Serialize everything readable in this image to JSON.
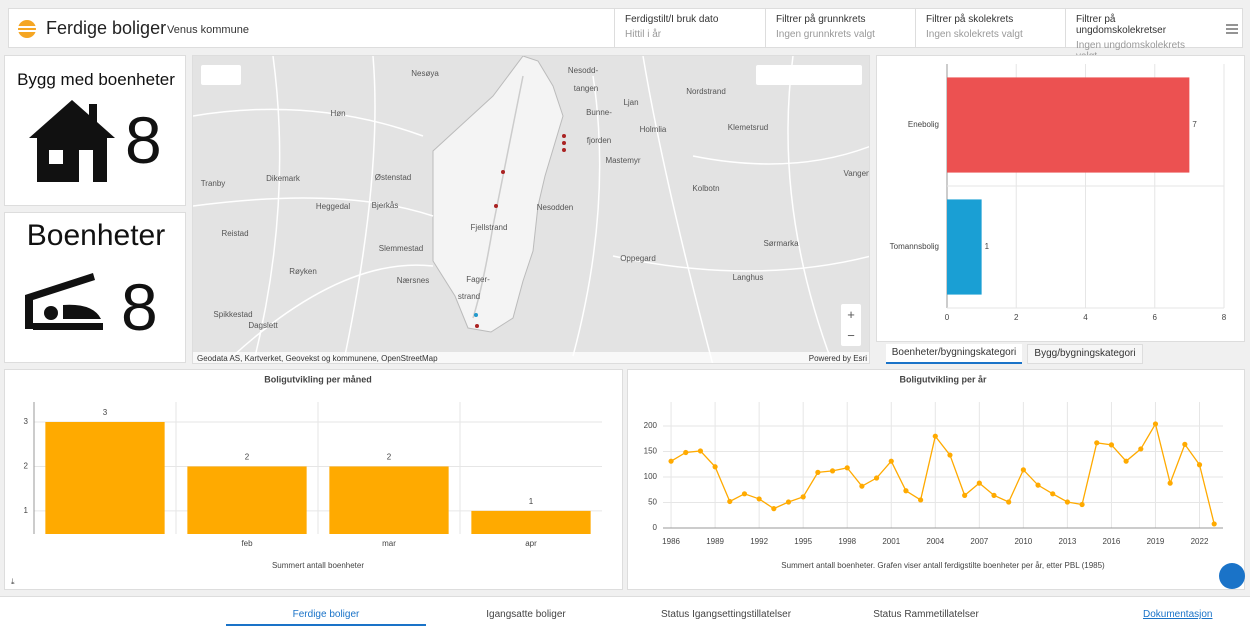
{
  "header": {
    "title": "Ferdige boliger",
    "subtitle": "Venus kommune"
  },
  "filters": [
    {
      "label": "Ferdigstilt/I bruk dato",
      "value": "Hittil i år"
    },
    {
      "label": "Filtrer på grunnkrets",
      "value": "Ingen grunnkrets valgt"
    },
    {
      "label": "Filtrer på skolekrets",
      "value": "Ingen skolekrets valgt"
    },
    {
      "label": "Filtrer på ungdomskolekretser",
      "value": "Ingen ungdomskolekrets valgt"
    }
  ],
  "indicators": [
    {
      "title": "Bygg med boenheter",
      "value": 8
    },
    {
      "title": "Boenheter",
      "value": 8
    }
  ],
  "map": {
    "labels": [
      "Nesøya",
      "Høn",
      "Østenstad",
      "Bjerkås",
      "Fjellstrand",
      "Nesodden",
      "Nesodd-",
      "tangen",
      "Bunne-",
      "fjorden",
      "Ljan",
      "Holmlia",
      "Nordstrand",
      "Klemetsrud",
      "Mastemyr",
      "Kolbotn",
      "Vangen",
      "Oppegard",
      "Langhus",
      "Sørmarka",
      "Slemmestad",
      "Heggedal",
      "Dikemark",
      "Tranby",
      "Reistad",
      "Røyken",
      "Spikkestad",
      "Dagslett",
      "Nærsnes",
      "Fager-",
      "strand"
    ],
    "attribution": "Geodata AS, Kartverket, Geovekst og kommunene, OpenStreetMap",
    "credit": "Powered by Esri"
  },
  "chart_data": [
    {
      "type": "hbar",
      "categories": [
        "Enebolig",
        "Tomannsbolig"
      ],
      "values": [
        7,
        1
      ],
      "colors": [
        "#ec5151",
        "#1a9fd4"
      ],
      "xlim": [
        0,
        8
      ],
      "xticks": [
        0,
        2,
        4,
        6,
        8
      ],
      "grid": true
    },
    {
      "type": "bar",
      "title": "Boligutvikling per måned",
      "categories": [
        null,
        "feb",
        "mar",
        "apr"
      ],
      "values": [
        3,
        2,
        2,
        1
      ],
      "color": "#ffaa00",
      "ylim": [
        0.48,
        3.45
      ],
      "yticks": [
        1,
        2,
        3
      ],
      "x_label": "Summert antall boenheter",
      "grid": true
    },
    {
      "type": "line",
      "title": "Boligutvikling per år",
      "x": [
        1986,
        1987,
        1988,
        1989,
        1990,
        1991,
        1992,
        1993,
        1994,
        1995,
        1996,
        1997,
        1998,
        1999,
        2000,
        2001,
        2002,
        2003,
        2004,
        2005,
        2006,
        2007,
        2008,
        2009,
        2010,
        2011,
        2012,
        2013,
        2014,
        2015,
        2016,
        2017,
        2018,
        2019,
        2020,
        2021,
        2022,
        2023
      ],
      "values": [
        131,
        148,
        151,
        120,
        52,
        67,
        57,
        38,
        51,
        61,
        109,
        112,
        118,
        82,
        98,
        131,
        73,
        55,
        180,
        143,
        64,
        88,
        64,
        51,
        114,
        84,
        67,
        51,
        46,
        167,
        163,
        131,
        155,
        204,
        88,
        164,
        124,
        8
      ],
      "color": "#ffaa00",
      "xlim": [
        1985.45,
        2023.6
      ],
      "xticks": [
        1986,
        1989,
        1992,
        1995,
        1998,
        2001,
        2004,
        2007,
        2010,
        2013,
        2016,
        2019,
        2022
      ],
      "ylim": [
        0,
        247
      ],
      "yticks": [
        0,
        50,
        100,
        150,
        200
      ],
      "x_label": "Summert antall boenheter. Grafen viser antall ferdigstilte boenheter per år, etter PBL (1985)",
      "grid": true
    }
  ],
  "tabs": [
    "Boenheter/bygningskategori",
    "Bygg/bygningskategori"
  ],
  "nav": [
    "Ferdige boliger",
    "Igangsatte boliger",
    "Status Igangsettingstillatelser",
    "Status Rammetillatelser"
  ],
  "link": "Dokumentasjon"
}
